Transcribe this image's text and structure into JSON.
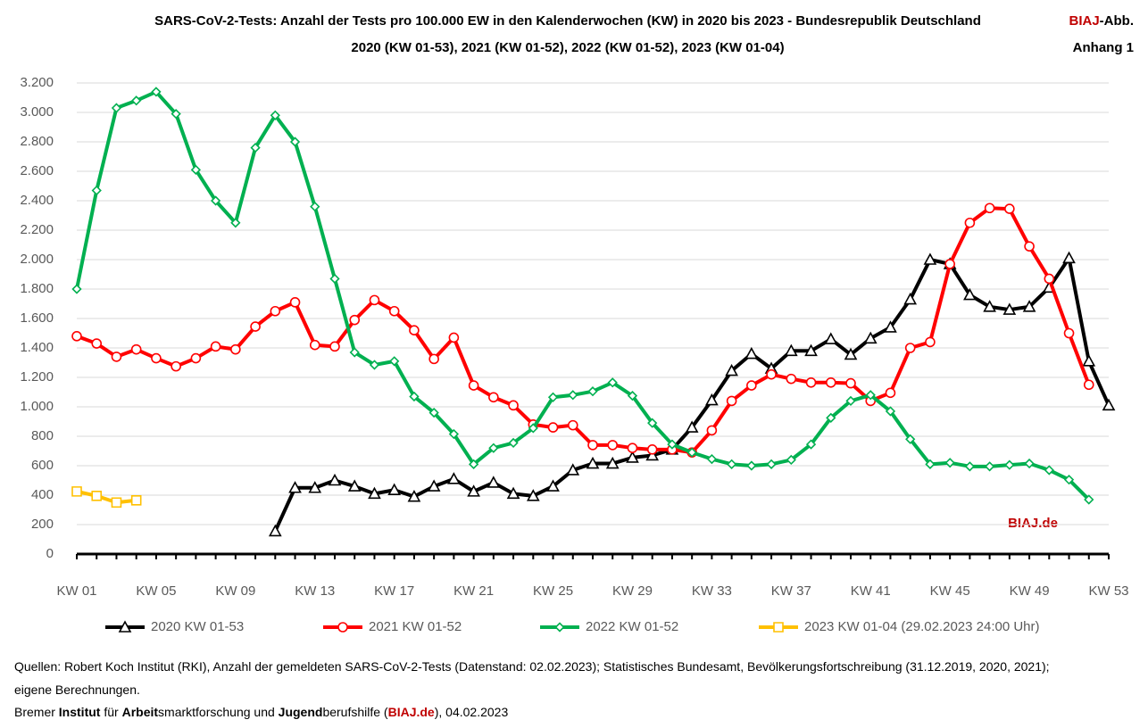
{
  "chart_data": {
    "type": "line",
    "title": "SARS-CoV-2-Tests: Anzahl der Tests pro 100.000 EW in den Kalenderwochen (KW) in 2020 bis 2023 - Bundesrepublik Deutschland",
    "subtitle": "2020 (KW 01-53), 2021 (KW 01-52), 2022 (KW 01-52), 2023 (KW 01-04)",
    "corner_label": [
      "BIAJ",
      "-Abb."
    ],
    "corner_sublabel": "Anhang 1",
    "watermark": "BIAJ.de",
    "categories": [
      "KW 01",
      null,
      null,
      null,
      "KW 05",
      null,
      null,
      null,
      "KW 09",
      null,
      null,
      null,
      "KW 13",
      null,
      null,
      null,
      "KW 17",
      null,
      null,
      null,
      "KW 21",
      null,
      null,
      null,
      "KW 25",
      null,
      null,
      null,
      "KW 29",
      null,
      null,
      null,
      "KW 33",
      null,
      null,
      null,
      "KW 37",
      null,
      null,
      null,
      "KW 41",
      null,
      null,
      null,
      "KW 45",
      null,
      null,
      null,
      "KW 49",
      null,
      null,
      null,
      "KW 53"
    ],
    "ylim": [
      0,
      3200
    ],
    "yticks": [
      0,
      200,
      400,
      600,
      800,
      {
        "value": 1000,
        "label": "1.000"
      },
      {
        "value": 1200,
        "label": "1.200"
      },
      {
        "value": 1400,
        "label": "1.400"
      },
      {
        "value": 1600,
        "label": "1.600"
      },
      {
        "value": 1800,
        "label": "1.800"
      },
      {
        "value": 2000,
        "label": "2.000"
      },
      {
        "value": 2200,
        "label": "2.200"
      },
      {
        "value": 2400,
        "label": "2.400"
      },
      {
        "value": 2600,
        "label": "2.600"
      },
      {
        "value": 2800,
        "label": "2.800"
      },
      {
        "value": 3000,
        "label": "3.000"
      },
      {
        "value": 3200,
        "label": "3.200"
      }
    ],
    "grid": true,
    "legend": "bottom",
    "series": [
      {
        "name": "2020 KW 01-53",
        "color": "#000000",
        "marker": "triangle",
        "values": [
          null,
          null,
          null,
          null,
          null,
          null,
          null,
          null,
          null,
          null,
          155,
          450,
          450,
          500,
          460,
          410,
          435,
          390,
          460,
          510,
          425,
          485,
          410,
          395,
          460,
          570,
          615,
          615,
          655,
          670,
          710,
          860,
          1045,
          1245,
          1360,
          1260,
          1380,
          1380,
          1460,
          1355,
          1465,
          1540,
          1730,
          2000,
          1970,
          1760,
          1680,
          1660,
          1680,
          1810,
          2010,
          1310,
          1010
        ]
      },
      {
        "name": "2021 KW 01-52",
        "color": "#ff0000",
        "marker": "circle",
        "values": [
          1480,
          1430,
          1340,
          1390,
          1330,
          1275,
          1330,
          1410,
          1390,
          1545,
          1650,
          1710,
          1420,
          1410,
          1590,
          1725,
          1650,
          1520,
          1325,
          1470,
          1145,
          1065,
          1010,
          880,
          860,
          875,
          740,
          740,
          720,
          710,
          710,
          690,
          840,
          1040,
          1145,
          1220,
          1190,
          1165,
          1165,
          1160,
          1040,
          1095,
          1400,
          1440,
          1970,
          2250,
          2350,
          2345,
          2090,
          1870,
          1500,
          1150,
          null
        ]
      },
      {
        "name": "2022 KW 01-52",
        "color": "#00b050",
        "marker": "diamond",
        "values": [
          1800,
          2470,
          3030,
          3080,
          3140,
          2990,
          2610,
          2400,
          2250,
          2760,
          2980,
          2800,
          2360,
          1870,
          1370,
          1285,
          1310,
          1070,
          960,
          815,
          610,
          720,
          755,
          855,
          1065,
          1080,
          1105,
          1165,
          1075,
          890,
          745,
          690,
          645,
          610,
          600,
          610,
          640,
          745,
          925,
          1040,
          1080,
          970,
          780,
          610,
          620,
          595,
          595,
          605,
          615,
          570,
          505,
          370,
          null
        ]
      },
      {
        "name": "2023 KW 01-04 (29.02.2023 24:00 Uhr)",
        "color": "#ffc000",
        "marker": "square",
        "values": [
          425,
          395,
          350,
          365,
          null,
          null,
          null,
          null,
          null,
          null,
          null,
          null,
          null,
          null,
          null,
          null,
          null,
          null,
          null,
          null,
          null,
          null,
          null,
          null,
          null,
          null,
          null,
          null,
          null,
          null,
          null,
          null,
          null,
          null,
          null,
          null,
          null,
          null,
          null,
          null,
          null,
          null,
          null,
          null,
          null,
          null,
          null,
          null,
          null,
          null,
          null,
          null,
          null
        ]
      }
    ]
  },
  "footer": {
    "line1": "Quellen: Robert Koch Institut (RKI), Anzahl der gemeldeten SARS-CoV-2-Tests (Datenstand: 02.02.2023); Statistisches Bundesamt, Bevölkerungsfortschreibung (31.12.2019, 2020, 2021);",
    "line2": "eigene Berechnungen.",
    "line3": [
      "Bremer ",
      "Institut",
      " für ",
      "Arbeit",
      "smarktforschung und ",
      "Jugend",
      "berufshilfe (",
      "BIAJ.de",
      "), 04.02.2023"
    ]
  }
}
